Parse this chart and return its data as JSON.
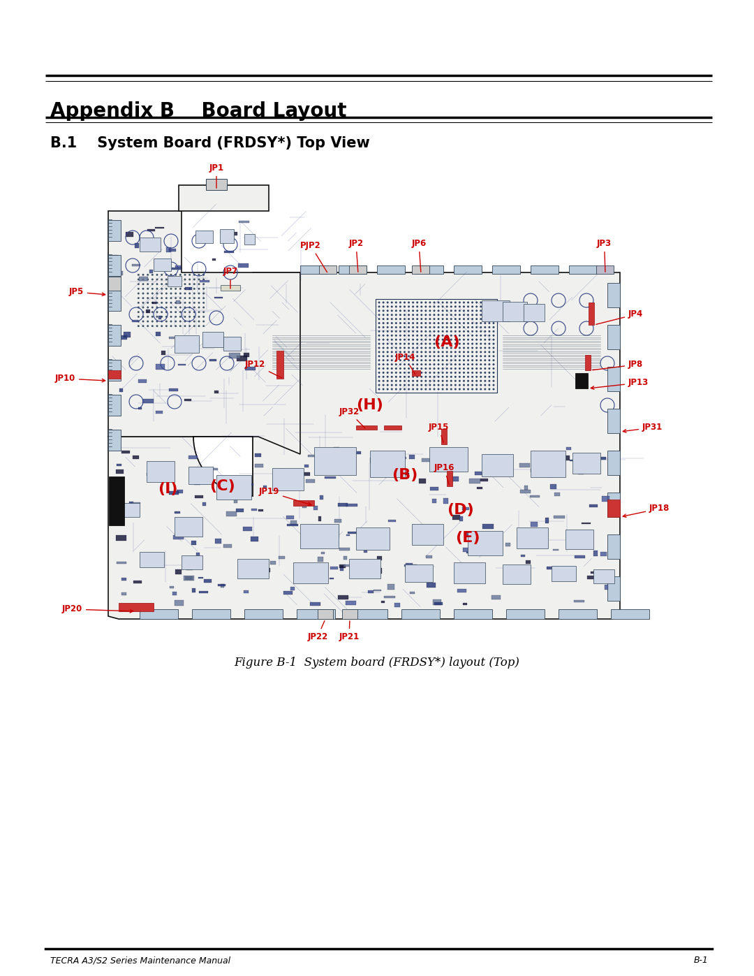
{
  "page_bg": "#ffffff",
  "title_text": "Appendix B    Board Layout",
  "subtitle_text": "B.1    System Board (FRDSY*) Top View",
  "caption_text": "Figure B-1  System board (FRDSY*) layout (Top)",
  "footer_left": "TECRA A3/S2 Series Maintenance Manual",
  "footer_right": "B-1",
  "title_fontsize": 20,
  "subtitle_fontsize": 15,
  "caption_fontsize": 12,
  "footer_fontsize": 9,
  "label_color": "#cc0000",
  "label_fontsize": 8.5,
  "board_color": "#f8f8f8",
  "board_edge_color": "#111111",
  "pcb_line_color": "#3355aa",
  "pcb_bg": "#e8eef8"
}
